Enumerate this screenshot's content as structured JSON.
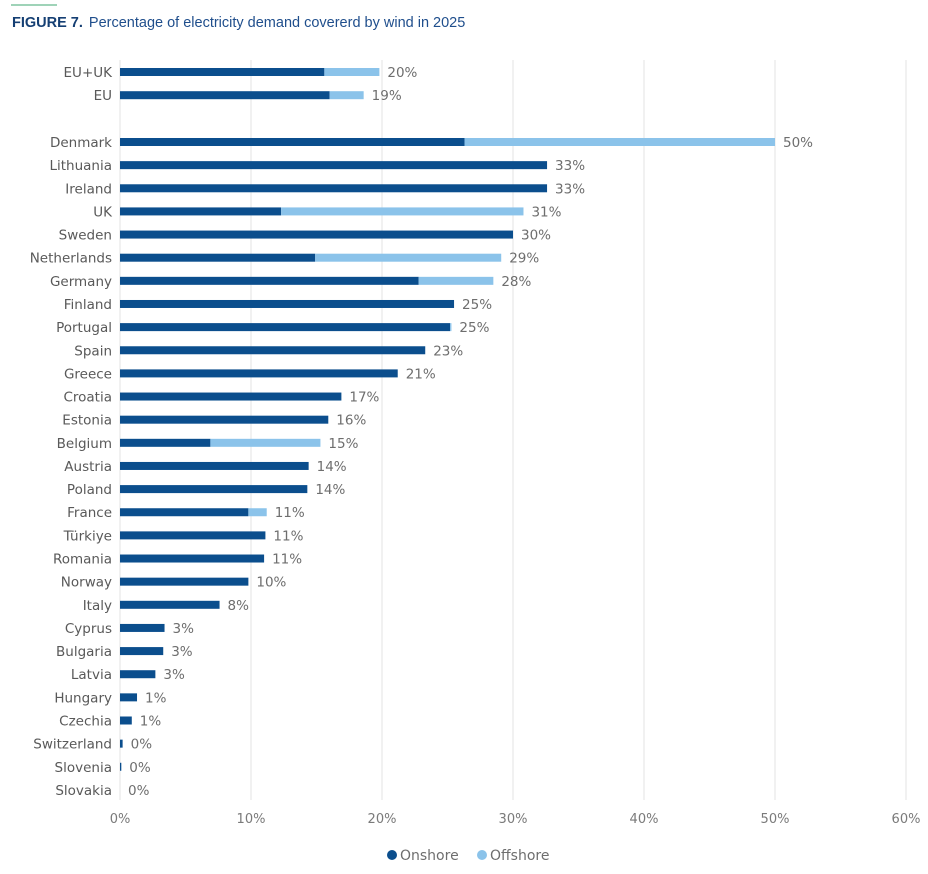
{
  "figure_label": "FIGURE 7.",
  "title": "Percentage of electricity demand covererd by wind in 2025",
  "colors": {
    "onshore": "#0b4e8d",
    "offshore": "#8bc3ea",
    "accent": "#9fd3b8"
  },
  "chart_data": {
    "type": "bar",
    "orientation": "horizontal",
    "stacked": true,
    "title": "Percentage of electricity demand covererd by wind in 2025",
    "xlim": [
      0,
      60
    ],
    "x_ticks": [
      "0%",
      "10%",
      "20%",
      "30%",
      "40%",
      "50%",
      "60%"
    ],
    "grid": "vertical",
    "legend_position": "bottom",
    "categories": [
      "EU+UK",
      "EU",
      "Denmark",
      "Lithuania",
      "Ireland",
      "UK",
      "Sweden",
      "Netherlands",
      "Germany",
      "Finland",
      "Portugal",
      "Spain",
      "Greece",
      "Croatia",
      "Estonia",
      "Belgium",
      "Austria",
      "Poland",
      "France",
      "Türkiye",
      "Romania",
      "Norway",
      "Italy",
      "Cyprus",
      "Bulgaria",
      "Latvia",
      "Hungary",
      "Czechia",
      "Switzerland",
      "Slovenia",
      "Slovakia"
    ],
    "series": [
      {
        "name": "Onshore",
        "values": [
          15.6,
          16.0,
          26.3,
          32.6,
          32.6,
          12.3,
          30.0,
          14.9,
          22.8,
          25.5,
          25.2,
          23.3,
          21.2,
          16.9,
          15.9,
          6.9,
          14.4,
          14.3,
          9.8,
          11.1,
          11.0,
          9.8,
          7.6,
          3.4,
          3.3,
          2.7,
          1.3,
          0.9,
          0.2,
          0.1,
          0.0
        ]
      },
      {
        "name": "Offshore",
        "values": [
          4.2,
          2.6,
          23.7,
          0,
          0,
          18.5,
          0,
          14.2,
          5.7,
          0,
          0.1,
          0,
          0,
          0,
          0,
          8.4,
          0,
          0,
          1.4,
          0,
          0,
          0,
          0,
          0,
          0,
          0,
          0,
          0,
          0,
          0,
          0
        ]
      }
    ],
    "data_labels": [
      "20%",
      "19%",
      "50%",
      "33%",
      "33%",
      "31%",
      "30%",
      "29%",
      "28%",
      "25%",
      "25%",
      "23%",
      "21%",
      "17%",
      "16%",
      "15%",
      "14%",
      "14%",
      "11%",
      "11%",
      "11%",
      "10%",
      "8%",
      "3%",
      "3%",
      "3%",
      "1%",
      "1%",
      "0%",
      "0%",
      "0%"
    ]
  }
}
